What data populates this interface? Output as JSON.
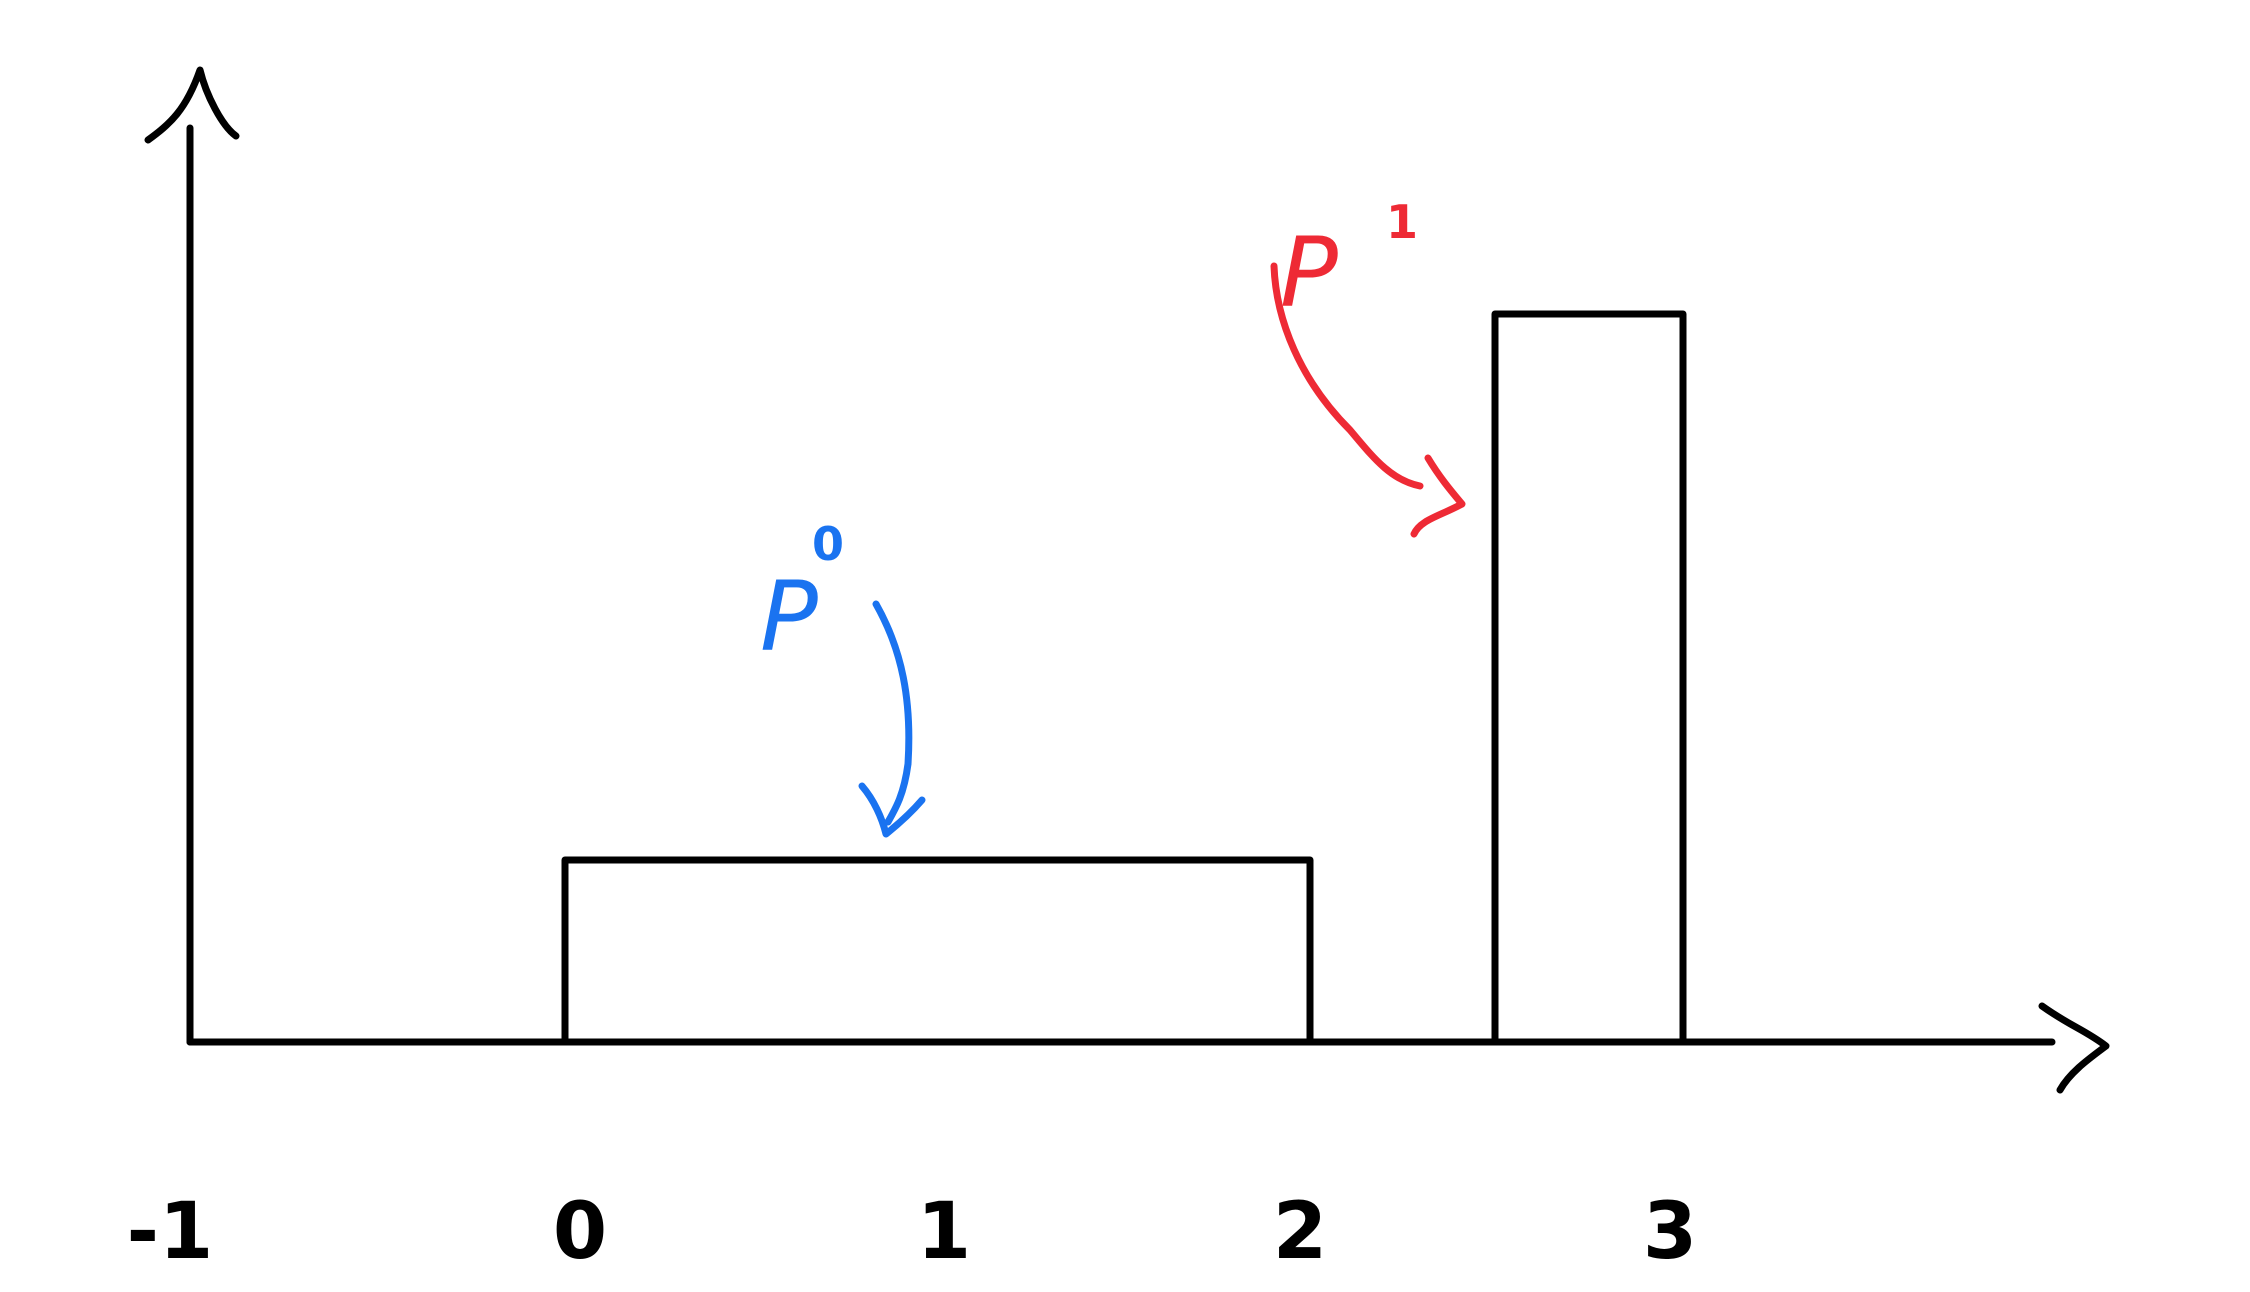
{
  "chart_data": {
    "type": "bar",
    "xlim": [
      -1,
      3
    ],
    "ticks": [
      "-1",
      "0",
      "1",
      "2",
      "3"
    ],
    "bars": [
      {
        "x_start": 0,
        "x_end": 2,
        "height": 1,
        "label_letter": "P",
        "label_subscript": "0"
      },
      {
        "x_start": 2.25,
        "x_end": 2.75,
        "height": 4,
        "label_letter": "P",
        "label_subscript": "1"
      }
    ],
    "colors": {
      "axis": "#000000",
      "p0": "#1a73f0",
      "p1": "#ee2a35"
    }
  }
}
